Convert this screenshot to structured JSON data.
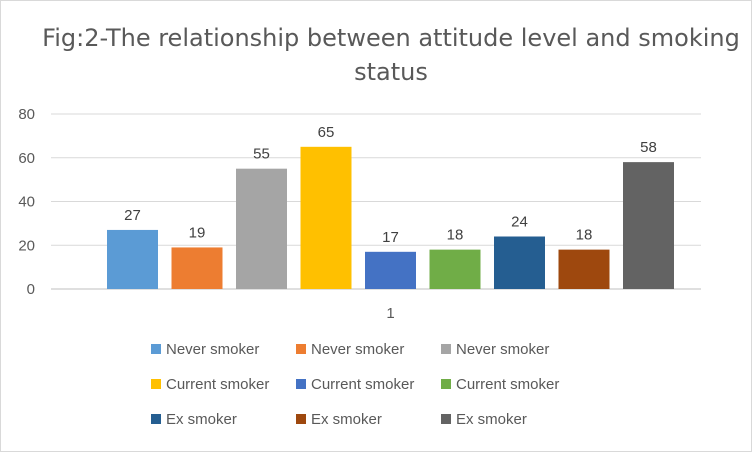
{
  "chart_data": {
    "type": "bar",
    "title": "Fig:2-The relationship between attitude level and smoking status",
    "categories": [
      "1"
    ],
    "ylim": [
      0,
      80
    ],
    "yticks": [
      0,
      20,
      40,
      60,
      80
    ],
    "grid": true,
    "legend_position": "bottom",
    "series": [
      {
        "name": "Never smoker",
        "values": [
          27
        ],
        "color": "#5b9bd5"
      },
      {
        "name": "Never smoker",
        "values": [
          19
        ],
        "color": "#ed7d31"
      },
      {
        "name": "Never smoker",
        "values": [
          55
        ],
        "color": "#a5a5a5"
      },
      {
        "name": "Current smoker",
        "values": [
          65
        ],
        "color": "#ffc000"
      },
      {
        "name": "Current smoker",
        "values": [
          17
        ],
        "color": "#4472c4"
      },
      {
        "name": "Current smoker",
        "values": [
          18
        ],
        "color": "#70ad47"
      },
      {
        "name": "Ex smoker",
        "values": [
          24
        ],
        "color": "#255e91"
      },
      {
        "name": "Ex smoker",
        "values": [
          18
        ],
        "color": "#9e480e"
      },
      {
        "name": "Ex smoker",
        "values": [
          58
        ],
        "color": "#636363"
      }
    ]
  }
}
